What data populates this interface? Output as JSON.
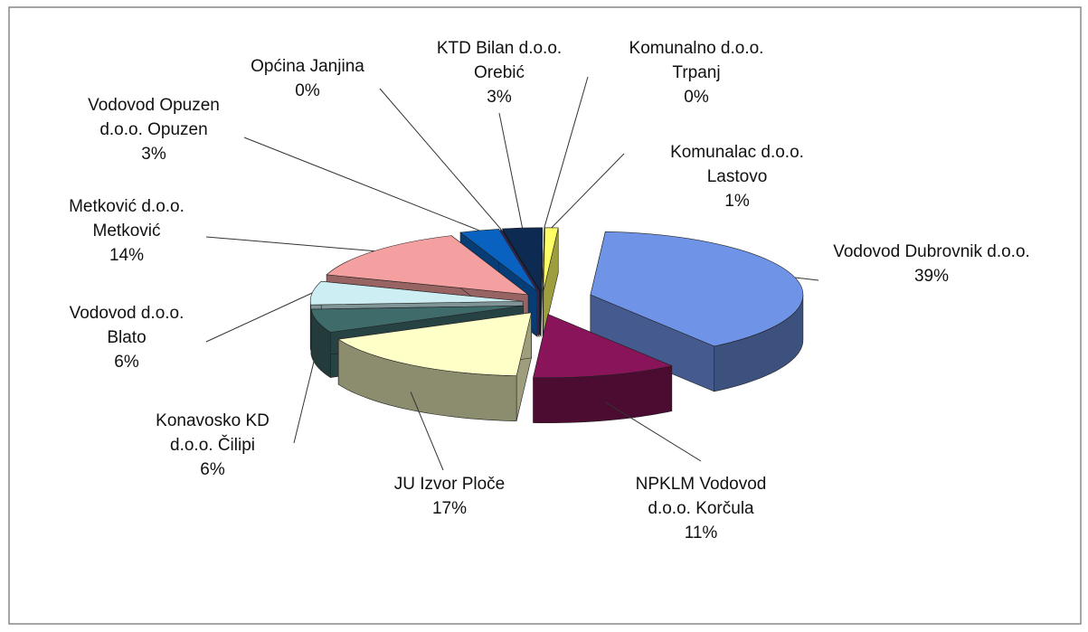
{
  "chart_data": {
    "type": "pie",
    "categories": [
      "Vodovod Dubrovnik d.o.o.",
      "NPKLM Vodovod d.o.o. Korčula",
      "JU Izvor Ploče",
      "Konavosko KD d.o.o. Čilipi",
      "Vodovod d.o.o. Blato",
      "Metković d.o.o. Metković",
      "Vodovod Opuzen d.o.o. Opuzen",
      "Općina Janjina",
      "KTD Bilan d.o.o. Orebić",
      "Komunalno d.o.o. Trpanj",
      "Komunalac d.o.o. Lastovo"
    ],
    "values": [
      39,
      11,
      17,
      6,
      6,
      14,
      3,
      0,
      3,
      0,
      1
    ],
    "value_labels": [
      "39%",
      "11%",
      "17%",
      "6%",
      "6%",
      "14%",
      "3%",
      "0%",
      "3%",
      "0%",
      "1%"
    ],
    "colors": [
      "#6f93e6",
      "#8a1459",
      "#ffffc8",
      "#3f6b6b",
      "#cdeef2",
      "#f5a0a0",
      "#0a62c0",
      "#6a3d9a",
      "#0d2a52",
      "#7b5fa8",
      "#ffff66"
    ]
  }
}
